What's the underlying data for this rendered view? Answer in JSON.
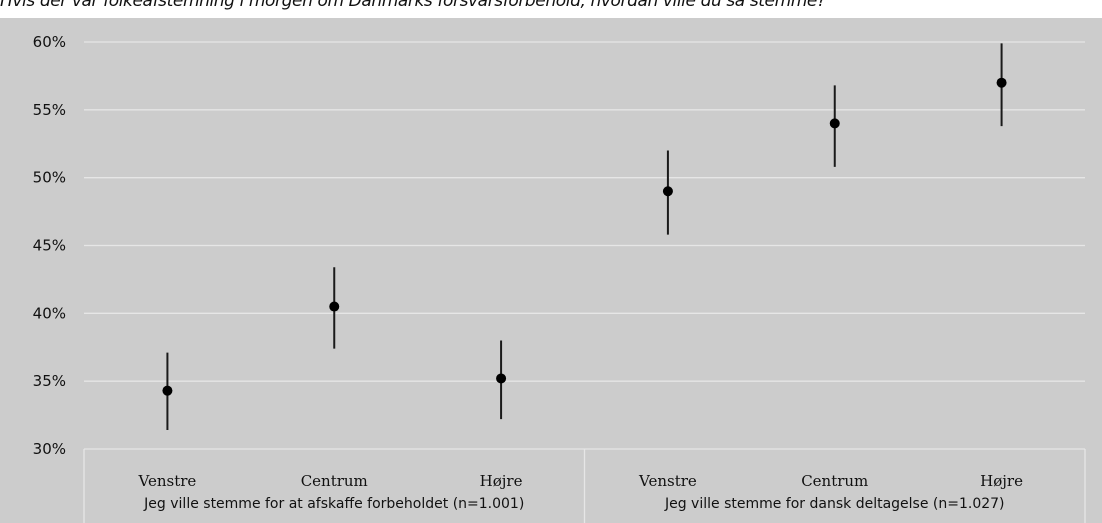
{
  "chart_data": {
    "type": "scatter",
    "title": "Hvis der var folkeafstemning i morgen om Danmarks forsvarsforbehold, hvordan ville du så stemme?",
    "ylim": [
      30,
      60
    ],
    "yticks": [
      "30%",
      "35%",
      "40%",
      "45%",
      "50%",
      "55%",
      "60%"
    ],
    "ytick_values": [
      30,
      35,
      40,
      45,
      50,
      55,
      60
    ],
    "grid": true,
    "groups": [
      {
        "label": "Jeg ville stemme for at afskaffe forbeholdet (n=1.001)",
        "points": [
          {
            "category": "Venstre",
            "value": 34.3,
            "low": 31.4,
            "high": 37.1
          },
          {
            "category": "Centrum",
            "value": 40.5,
            "low": 37.4,
            "high": 43.4
          },
          {
            "category": "Højre",
            "value": 35.2,
            "low": 32.2,
            "high": 38.0
          }
        ]
      },
      {
        "label": "Jeg ville stemme for dansk deltagelse (n=1.027)",
        "points": [
          {
            "category": "Venstre",
            "value": 49.0,
            "low": 45.8,
            "high": 52.0
          },
          {
            "category": "Centrum",
            "value": 54.0,
            "low": 50.8,
            "high": 56.8
          },
          {
            "category": "Højre",
            "value": 57.0,
            "low": 53.8,
            "high": 59.9
          }
        ]
      }
    ]
  }
}
